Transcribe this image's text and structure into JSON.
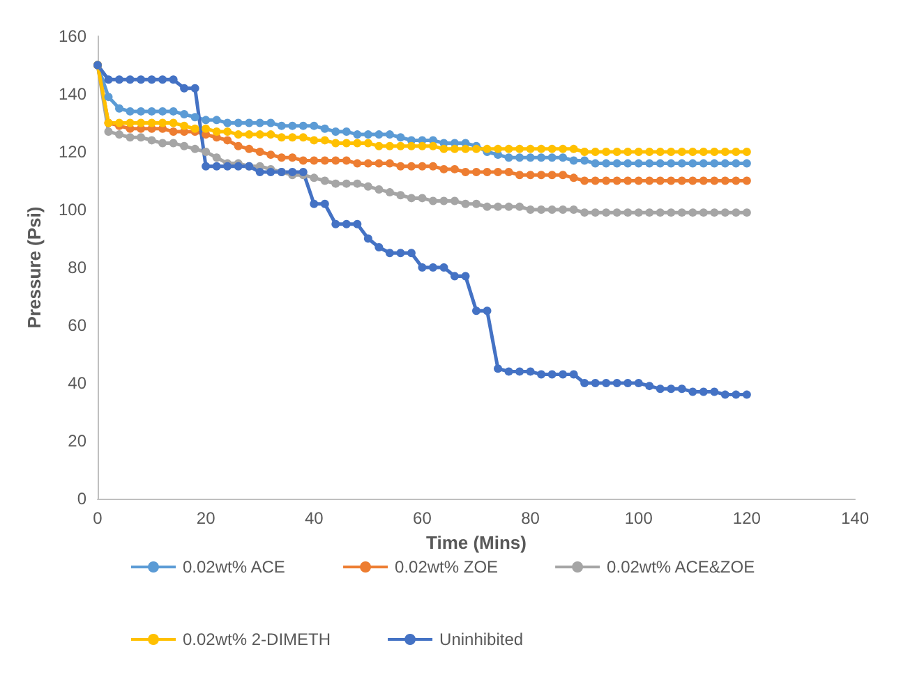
{
  "chart_data": {
    "type": "line",
    "xlabel": "Time (Mins)",
    "ylabel": "Pressure (Psi)",
    "x": [
      0,
      2,
      4,
      6,
      8,
      10,
      12,
      14,
      16,
      18,
      20,
      22,
      24,
      26,
      28,
      30,
      32,
      34,
      36,
      38,
      40,
      42,
      44,
      46,
      48,
      50,
      52,
      54,
      56,
      58,
      60,
      62,
      64,
      66,
      68,
      70,
      72,
      74,
      76,
      78,
      80,
      82,
      84,
      86,
      88,
      90,
      92,
      94,
      96,
      98,
      100,
      102,
      104,
      106,
      108,
      110,
      112,
      114,
      116,
      118,
      120
    ],
    "series": [
      {
        "name": "0.02wt% ACE",
        "color": "#5b9bd5",
        "values": [
          150,
          139,
          135,
          134,
          134,
          134,
          134,
          134,
          133,
          132,
          131,
          131,
          130,
          130,
          130,
          130,
          130,
          129,
          129,
          129,
          129,
          128,
          127,
          127,
          126,
          126,
          126,
          126,
          125,
          124,
          124,
          124,
          123,
          123,
          123,
          122,
          120,
          119,
          118,
          118,
          118,
          118,
          118,
          118,
          117,
          117,
          116,
          116,
          116,
          116,
          116,
          116,
          116,
          116,
          116,
          116,
          116,
          116,
          116,
          116,
          116
        ]
      },
      {
        "name": "0.02wt% ZOE",
        "color": "#ed7d31",
        "values": [
          150,
          130,
          129,
          128,
          128,
          128,
          128,
          127,
          127,
          127,
          126,
          125,
          124,
          122,
          121,
          120,
          119,
          118,
          118,
          117,
          117,
          117,
          117,
          117,
          116,
          116,
          116,
          116,
          115,
          115,
          115,
          115,
          114,
          114,
          113,
          113,
          113,
          113,
          113,
          112,
          112,
          112,
          112,
          112,
          111,
          110,
          110,
          110,
          110,
          110,
          110,
          110,
          110,
          110,
          110,
          110,
          110,
          110,
          110,
          110,
          110
        ]
      },
      {
        "name": "0.02wt% ACE&ZOE",
        "color": "#a5a5a5",
        "values": [
          150,
          127,
          126,
          125,
          125,
          124,
          123,
          123,
          122,
          121,
          120,
          118,
          116,
          116,
          115,
          115,
          114,
          113,
          112,
          112,
          111,
          110,
          109,
          109,
          109,
          108,
          107,
          106,
          105,
          104,
          104,
          103,
          103,
          103,
          102,
          102,
          101,
          101,
          101,
          101,
          100,
          100,
          100,
          100,
          100,
          99,
          99,
          99,
          99,
          99,
          99,
          99,
          99,
          99,
          99,
          99,
          99,
          99,
          99,
          99,
          99
        ]
      },
      {
        "name": "0.02wt% 2-DIMETH",
        "color": "#ffc000",
        "values": [
          150,
          130,
          130,
          130,
          130,
          130,
          130,
          130,
          129,
          128,
          128,
          127,
          127,
          126,
          126,
          126,
          126,
          125,
          125,
          125,
          124,
          124,
          123,
          123,
          123,
          123,
          122,
          122,
          122,
          122,
          122,
          122,
          121,
          121,
          121,
          121,
          121,
          121,
          121,
          121,
          121,
          121,
          121,
          121,
          121,
          120,
          120,
          120,
          120,
          120,
          120,
          120,
          120,
          120,
          120,
          120,
          120,
          120,
          120,
          120,
          120
        ]
      },
      {
        "name": "Uninhibited",
        "color": "#4472c4",
        "values": [
          150,
          145,
          145,
          145,
          145,
          145,
          145,
          145,
          142,
          142,
          115,
          115,
          115,
          115,
          115,
          113,
          113,
          113,
          113,
          113,
          102,
          102,
          95,
          95,
          95,
          90,
          87,
          85,
          85,
          85,
          80,
          80,
          80,
          77,
          77,
          65,
          65,
          45,
          44,
          44,
          44,
          43,
          43,
          43,
          43,
          40,
          40,
          40,
          40,
          40,
          40,
          39,
          38,
          38,
          38,
          37,
          37,
          37,
          36,
          36,
          36
        ]
      }
    ],
    "xlim": [
      0,
      140
    ],
    "xticks": [
      0,
      20,
      40,
      60,
      80,
      100,
      120,
      140
    ],
    "ylim": [
      0,
      160
    ],
    "yticks": [
      0,
      20,
      40,
      60,
      80,
      100,
      120,
      140,
      160
    ],
    "legend": "bottom",
    "marker": "circle",
    "line_style": "solid"
  }
}
